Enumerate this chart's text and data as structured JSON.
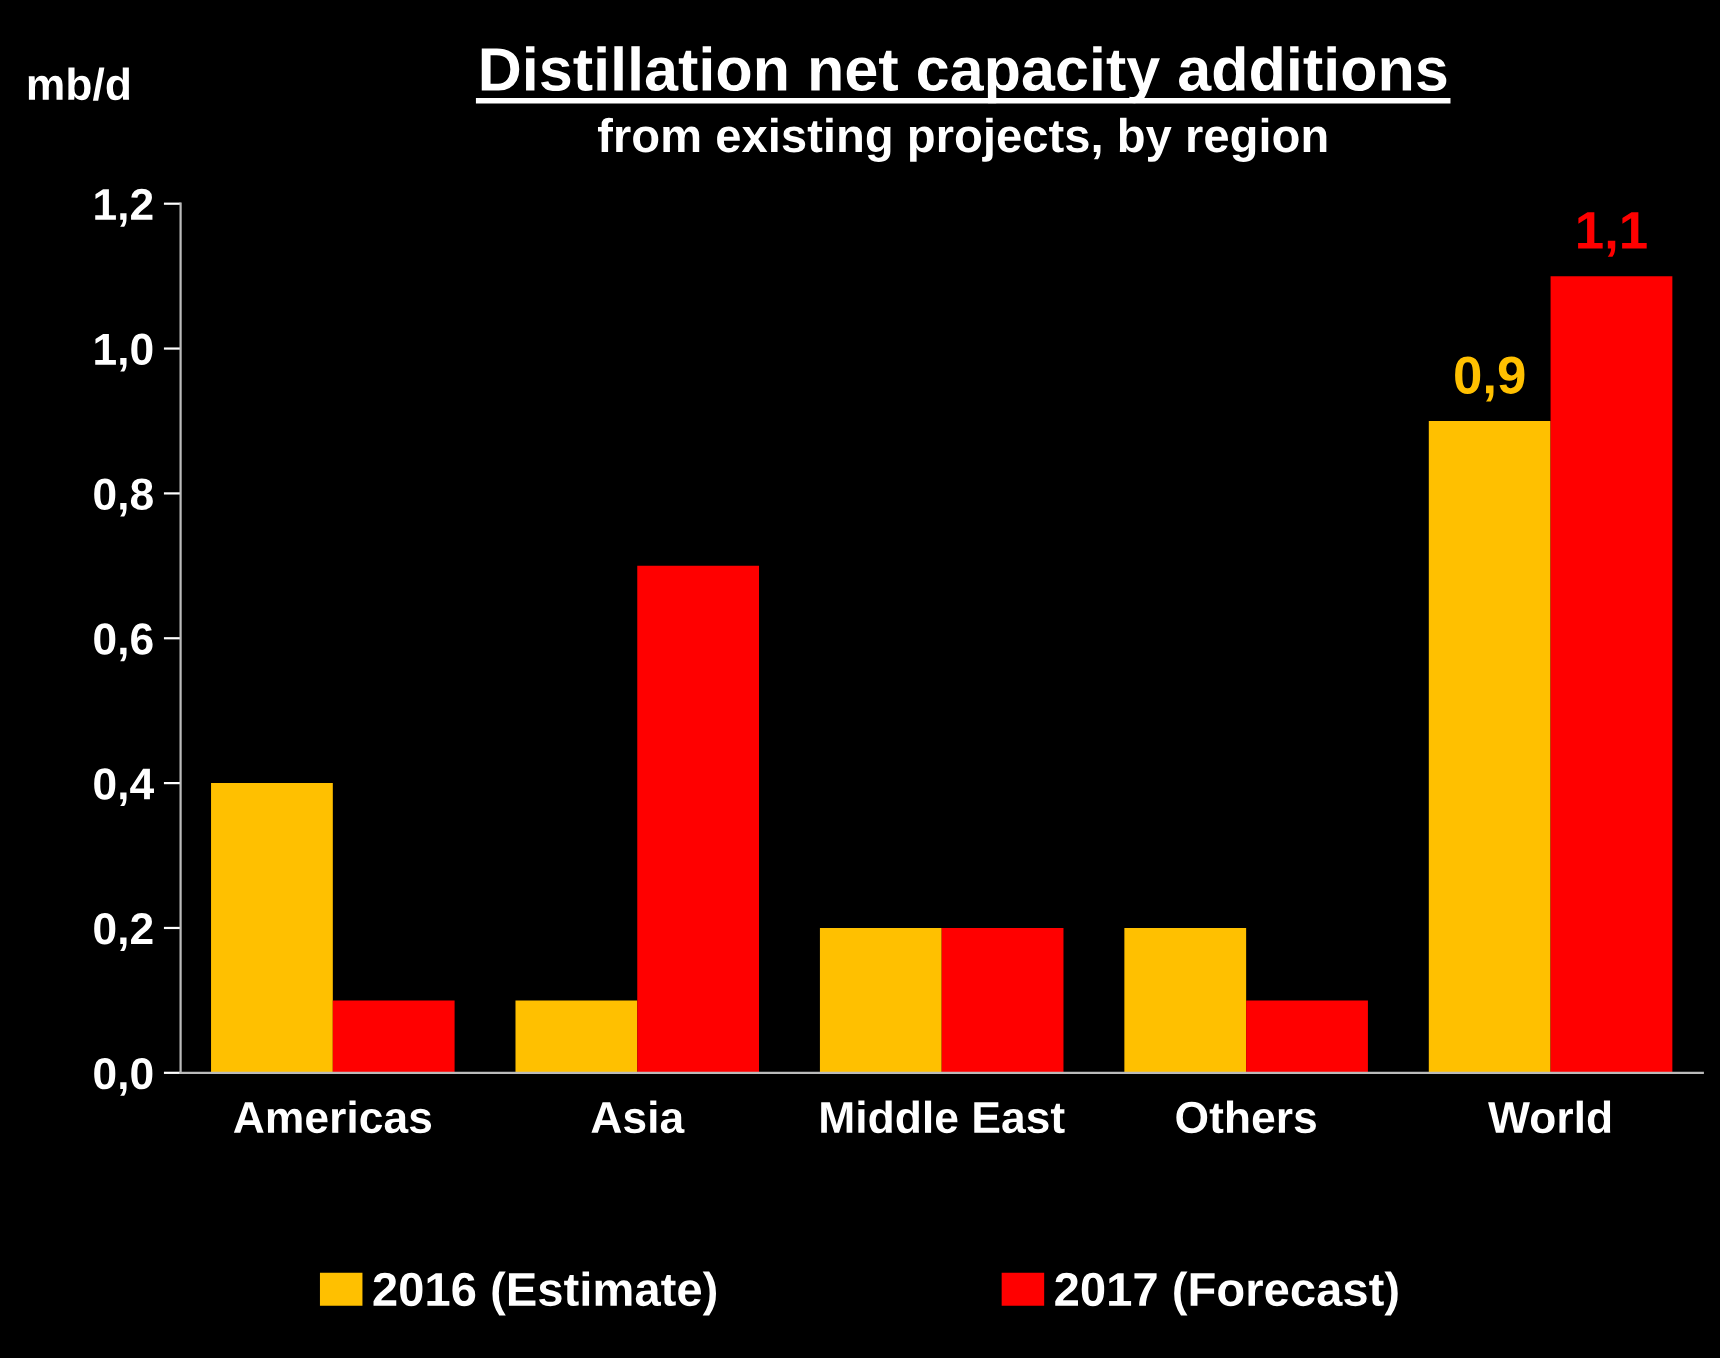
{
  "chart_data": {
    "type": "bar",
    "title": "Distillation net capacity additions",
    "subtitle": "from existing projects, by region",
    "ylabel": "mb/d",
    "categories": [
      "Americas",
      "Asia",
      "Middle East",
      "Others",
      "World"
    ],
    "series": [
      {
        "name": "2016 (Estimate)",
        "color": "#ffc000",
        "values": [
          0.4,
          0.1,
          0.2,
          0.2,
          0.9
        ],
        "value_labels": [
          null,
          null,
          null,
          null,
          "0,9"
        ]
      },
      {
        "name": "2017 (Forecast)",
        "color": "#ff0000",
        "values": [
          0.1,
          0.7,
          0.2,
          0.1,
          1.1
        ],
        "value_labels": [
          null,
          null,
          null,
          null,
          "1,1"
        ]
      }
    ],
    "ylim": [
      0,
      1.2
    ],
    "yticks": [
      {
        "value": 0,
        "label": "0,0"
      },
      {
        "value": 0.2,
        "label": "0,2"
      },
      {
        "value": 0.4,
        "label": "0,4"
      },
      {
        "value": 0.6,
        "label": "0,6"
      },
      {
        "value": 0.8,
        "label": "0,8"
      },
      {
        "value": 1.0,
        "label": "1,0"
      },
      {
        "value": 1.2,
        "label": "1,2"
      }
    ],
    "grid": false,
    "legend": "bottom"
  }
}
